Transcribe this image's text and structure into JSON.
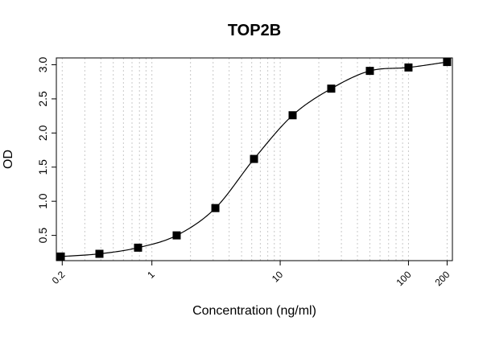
{
  "chart_data": {
    "type": "scatter",
    "title": "TOP2B",
    "xlabel": "Concentration (ng/ml)",
    "ylabel": "OD",
    "x_scale": "log",
    "xlim": [
      0.18,
      220
    ],
    "ylim": [
      0.13,
      3.1
    ],
    "x_ticks": [
      {
        "value": 0.2,
        "label": "0.2"
      },
      {
        "value": 1,
        "label": "1"
      },
      {
        "value": 10,
        "label": "10"
      },
      {
        "value": 100,
        "label": "100"
      },
      {
        "value": 200,
        "label": "200"
      }
    ],
    "y_ticks": [
      {
        "value": 0.5,
        "label": "0.5"
      },
      {
        "value": 1.0,
        "label": "1.0"
      },
      {
        "value": 1.5,
        "label": "1.5"
      },
      {
        "value": 2.0,
        "label": "2.0"
      },
      {
        "value": 2.5,
        "label": "2.5"
      },
      {
        "value": 3.0,
        "label": "3.0"
      }
    ],
    "grid": "vertical-minor-log",
    "series": [
      {
        "points": [
          {
            "x": 0.195,
            "y": 0.19
          },
          {
            "x": 0.39,
            "y": 0.23
          },
          {
            "x": 0.78,
            "y": 0.32
          },
          {
            "x": 1.56,
            "y": 0.5
          },
          {
            "x": 3.125,
            "y": 0.9
          },
          {
            "x": 6.25,
            "y": 1.62
          },
          {
            "x": 12.5,
            "y": 2.26
          },
          {
            "x": 25,
            "y": 2.65
          },
          {
            "x": 50,
            "y": 2.91
          },
          {
            "x": 100,
            "y": 2.96
          },
          {
            "x": 200,
            "y": 3.04
          }
        ],
        "fit": "4PL",
        "marker": "square",
        "color": "#000000"
      }
    ]
  }
}
